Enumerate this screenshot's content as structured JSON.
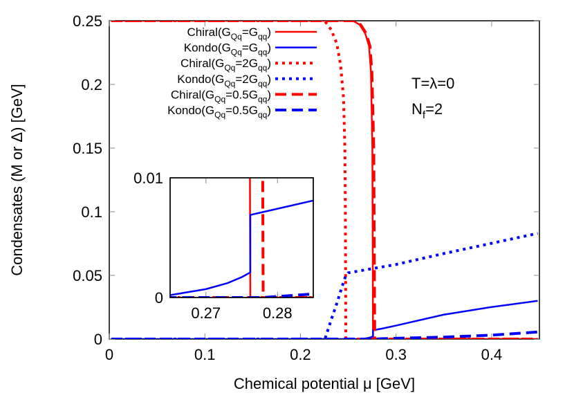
{
  "chart_data": {
    "type": "line",
    "xlabel": "Chemical potential μ [GeV]",
    "ylabel": "Condensates (M or Δ) [GeV]",
    "xlim": [
      0,
      0.45
    ],
    "ylim": [
      0,
      0.25
    ],
    "xticks": [
      "0",
      "0.1",
      "0.2",
      "0.3",
      "0.4"
    ],
    "xtick_values": [
      0,
      0.1,
      0.2,
      0.3,
      0.4
    ],
    "yticks": [
      "0",
      "0.05",
      "0.1",
      "0.15",
      "0.2",
      "0.25"
    ],
    "ytick_values": [
      0,
      0.05,
      0.1,
      0.15,
      0.2,
      0.25
    ],
    "grid": false,
    "legend_placement": "top-left",
    "annotations": [
      "T=λ=0",
      {
        "main": "N",
        "sub": "f",
        "rest": "=2"
      }
    ],
    "series": [
      {
        "name": "Chiral(GQq=Gqq)",
        "label_parts": [
          "Chiral(G",
          "Qq",
          "=G",
          "qq",
          ")"
        ],
        "color": "#ff0000",
        "style": "solid",
        "points": [
          [
            0,
            0.25
          ],
          [
            0.255,
            0.25
          ],
          [
            0.262,
            0.247
          ],
          [
            0.268,
            0.24
          ],
          [
            0.272,
            0.23
          ],
          [
            0.274,
            0.21
          ],
          [
            0.2755,
            0.15
          ],
          [
            0.2762,
            0
          ],
          [
            0.45,
            0
          ]
        ]
      },
      {
        "name": "Kondo(GQq=Gqq)",
        "label_parts": [
          "Kondo(G",
          "Qq",
          "=G",
          "qq",
          ")"
        ],
        "color": "#0000ff",
        "style": "solid",
        "points": [
          [
            0,
            0
          ],
          [
            0.25,
            0
          ],
          [
            0.26,
            0.0001
          ],
          [
            0.265,
            0.0002
          ],
          [
            0.27,
            0.0007
          ],
          [
            0.273,
            0.0012
          ],
          [
            0.275,
            0.0017
          ],
          [
            0.2762,
            0.0021
          ],
          [
            0.2762,
            0.0069
          ],
          [
            0.285,
            0.0081
          ],
          [
            0.3,
            0.0105
          ],
          [
            0.35,
            0.019
          ],
          [
            0.4,
            0.025
          ],
          [
            0.45,
            0.03
          ]
        ]
      },
      {
        "name": "Chiral(GQq=2Gqq)",
        "label_parts": [
          "Chiral(G",
          "Qq",
          "=2G",
          "qq",
          ")"
        ],
        "color": "#ff0000",
        "style": "dotted",
        "points": [
          [
            0,
            0.25
          ],
          [
            0.225,
            0.25
          ],
          [
            0.232,
            0.243
          ],
          [
            0.238,
            0.232
          ],
          [
            0.242,
            0.215
          ],
          [
            0.245,
            0.19
          ],
          [
            0.2465,
            0.15
          ],
          [
            0.247,
            0.1
          ],
          [
            0.2475,
            0
          ],
          [
            0.45,
            0
          ]
        ]
      },
      {
        "name": "Kondo(GQq=2Gqq)",
        "label_parts": [
          "Kondo(G",
          "Qq",
          "=2G",
          "qq",
          ")"
        ],
        "color": "#0000ff",
        "style": "dotted",
        "points": [
          [
            0,
            0
          ],
          [
            0.2255,
            0
          ],
          [
            0.232,
            0.015
          ],
          [
            0.238,
            0.028
          ],
          [
            0.243,
            0.04
          ],
          [
            0.2475,
            0.05
          ],
          [
            0.25,
            0.052
          ],
          [
            0.3,
            0.0585
          ],
          [
            0.35,
            0.067
          ],
          [
            0.4,
            0.075
          ],
          [
            0.45,
            0.083
          ]
        ]
      },
      {
        "name": "Chiral(GQq=0.5Gqq)",
        "label_parts": [
          "Chiral(G",
          "Qq",
          "=0.5G",
          "qq",
          ")"
        ],
        "color": "#ff0000",
        "style": "dashed",
        "points": [
          [
            0,
            0.25
          ],
          [
            0.256,
            0.25
          ],
          [
            0.263,
            0.247
          ],
          [
            0.269,
            0.24
          ],
          [
            0.273,
            0.23
          ],
          [
            0.275,
            0.21
          ],
          [
            0.277,
            0.15
          ],
          [
            0.278,
            0
          ],
          [
            0.45,
            0
          ]
        ]
      },
      {
        "name": "Kondo(GQq=0.5Gqq)",
        "label_parts": [
          "Kondo(G",
          "Qq",
          "=0.5G",
          "qq",
          ")"
        ],
        "color": "#0000ff",
        "style": "dashed",
        "points": [
          [
            0,
            0
          ],
          [
            0.278,
            0
          ],
          [
            0.285,
            0.0003
          ],
          [
            0.35,
            0.0015
          ],
          [
            0.4,
            0.003
          ],
          [
            0.45,
            0.0055
          ]
        ]
      }
    ],
    "inset": {
      "xlim": [
        0.265,
        0.285
      ],
      "ylim": [
        0,
        0.01
      ],
      "xticks": [
        "0.27",
        "0.28"
      ],
      "xtick_values": [
        0.27,
        0.28
      ],
      "yticks": [
        "0",
        "0.01"
      ],
      "ytick_values": [
        0,
        0.01
      ]
    }
  }
}
